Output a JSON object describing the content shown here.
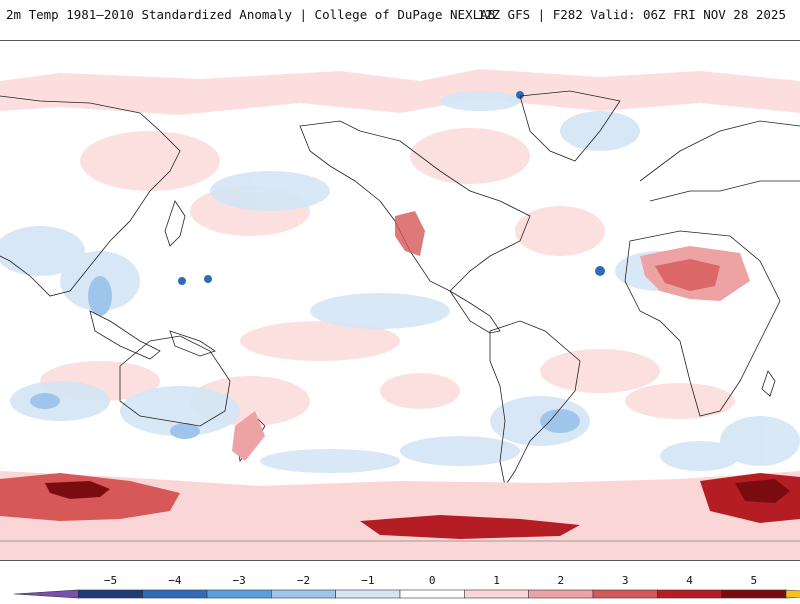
{
  "header": {
    "left_title": "2m Temp 1981–2010 Standardized Anomaly | College of DuPage NEXLAB",
    "right_title": "12Z GFS | F282 Valid: 06Z FRI NOV 28 2025"
  },
  "colorbar": {
    "ticks": [
      "−5",
      "−4",
      "−3",
      "−2",
      "−1",
      "0",
      "1",
      "2",
      "3",
      "4",
      "5"
    ],
    "colors": [
      "#7a4fb0",
      "#1f3a78",
      "#2f6cb8",
      "#5aa0dc",
      "#9fc6ea",
      "#d4e5f5",
      "#ffffff",
      "#fbd6d6",
      "#eda3a3",
      "#d65858",
      "#b31d23",
      "#7a0c10",
      "#f4c21a"
    ]
  }
}
